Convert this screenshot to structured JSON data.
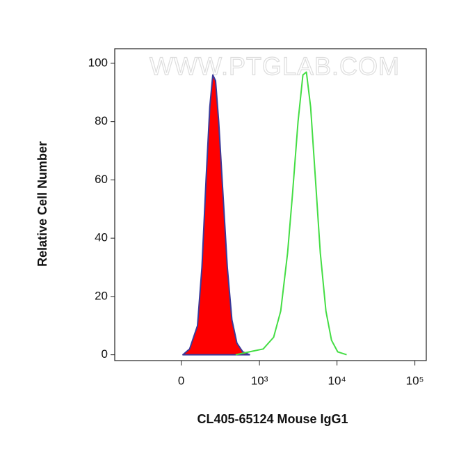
{
  "chart_data": {
    "type": "histogram-overlay",
    "watermark": "WWW.PTGLAB.COM",
    "x_label": "CL405-65124 Mouse IgG1",
    "y_label": "Relative Cell Number",
    "xscale": "biexponential",
    "xlim": [
      -700,
      140000
    ],
    "ylim": [
      -2,
      105
    ],
    "xticks": [
      0,
      {
        "value": 1000,
        "label": "10³"
      },
      {
        "value": 10000,
        "label": "10⁴"
      },
      {
        "value": 100000,
        "label": "10⁵"
      }
    ],
    "yticks": [
      0,
      20,
      40,
      60,
      80,
      100
    ],
    "series": [
      {
        "color": "#ff0000",
        "edgecolor": "#3a3a9a",
        "filled": true,
        "x": [
          10,
          50,
          100,
          130,
          160,
          190,
          215,
          240,
          270,
          315,
          365,
          425,
          500,
          600,
          740
        ],
        "values": [
          0,
          2,
          10,
          30,
          60,
          85,
          96,
          94,
          80,
          55,
          30,
          12,
          4,
          1,
          0
        ]
      },
      {
        "color": "#44dd44",
        "filled": false,
        "x": [
          480,
          740,
          1120,
          1530,
          1890,
          2320,
          2680,
          3160,
          3650,
          4040,
          4580,
          5290,
          6100,
          7200,
          8490,
          10200,
          13300
        ],
        "values": [
          0,
          1,
          2,
          6,
          15,
          35,
          55,
          80,
          96,
          97,
          85,
          60,
          35,
          15,
          5,
          1,
          0
        ]
      }
    ]
  }
}
